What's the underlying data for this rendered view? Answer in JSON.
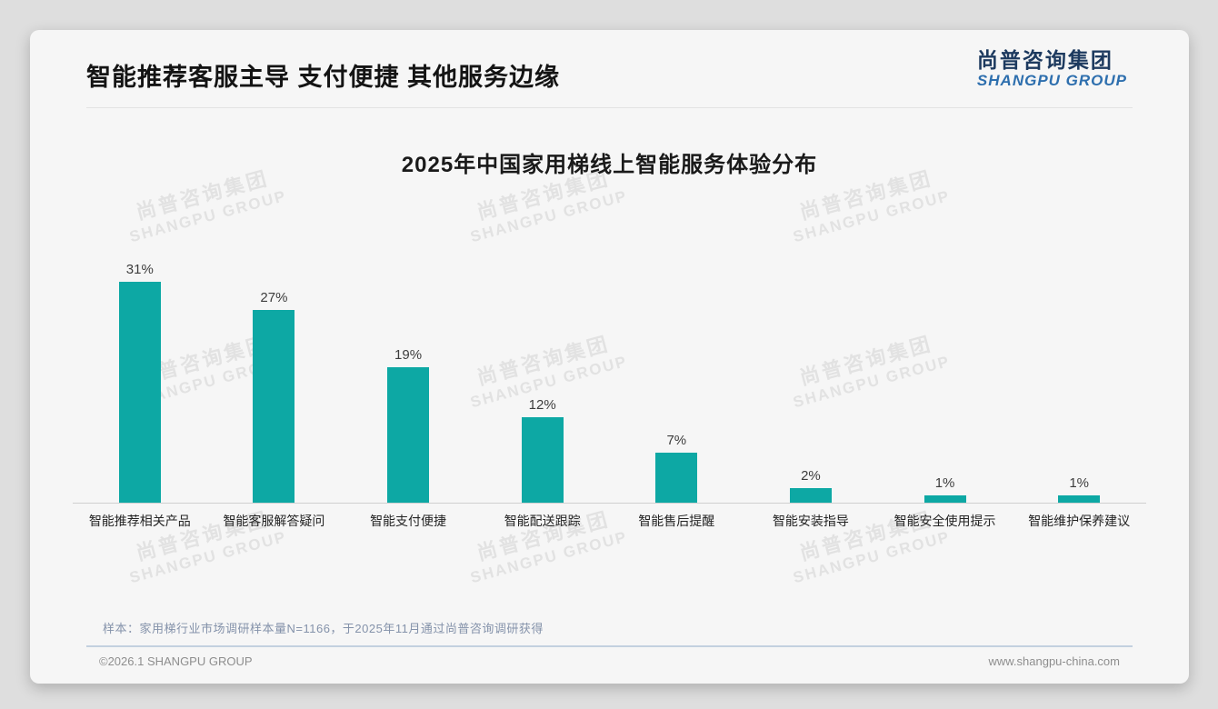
{
  "page": {
    "title": "智能推荐客服主导 支付便捷 其他服务边缘",
    "logo_cn": "尚普咨询集团",
    "logo_en": "SHANGPU GROUP"
  },
  "chart_data": {
    "type": "bar",
    "title": "2025年中国家用梯线上智能服务体验分布",
    "categories": [
      "智能推荐相关产品",
      "智能客服解答疑问",
      "智能支付便捷",
      "智能配送跟踪",
      "智能售后提醒",
      "智能安装指导",
      "智能安全使用提示",
      "智能维护保养建议"
    ],
    "values": [
      31,
      27,
      19,
      12,
      7,
      2,
      1,
      1
    ],
    "unit": "%",
    "bar_color": "#0DA8A4",
    "xlabel": "",
    "ylabel": "",
    "ylim": [
      0,
      33
    ],
    "grid": false,
    "legend": "none",
    "value_labels": "above bars"
  },
  "watermark": {
    "line1": "尚普咨询集团",
    "line2": "SHANGPU GROUP"
  },
  "footer": {
    "note": "样本：家用梯行业市场调研样本量N=1166，于2025年11月通过尚普咨询调研获得",
    "copyright": "©2026.1 SHANGPU GROUP",
    "website": "www.shangpu-china.com"
  }
}
